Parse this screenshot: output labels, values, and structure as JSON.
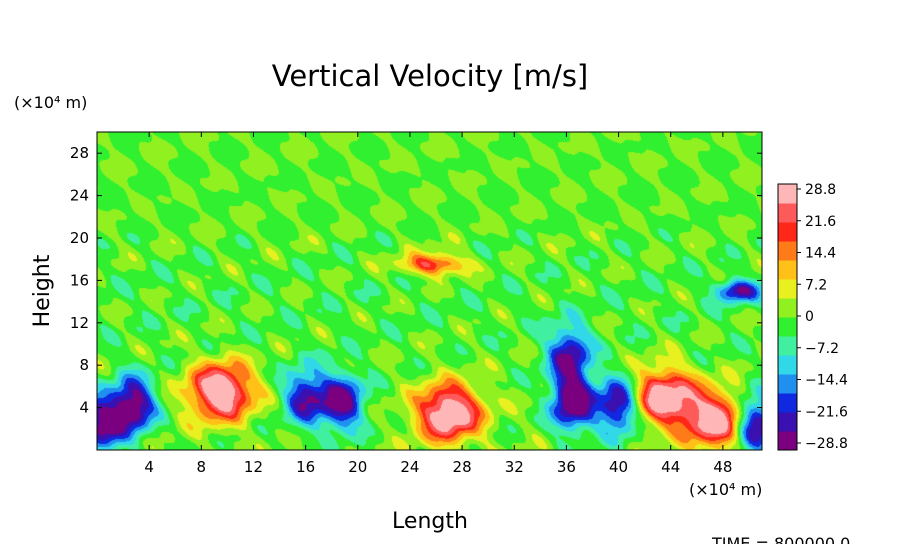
{
  "chart_data": {
    "type": "heatmap",
    "title": "Vertical Velocity [m/s]",
    "xlabel": "Length",
    "ylabel": "Height",
    "x_unit": "(×10⁴ m)",
    "y_unit": "(×10⁴ m)",
    "xlim": [
      0,
      51
    ],
    "ylim": [
      0,
      30
    ],
    "x_ticks": [
      "4",
      "8",
      "12",
      "16",
      "20",
      "24",
      "28",
      "32",
      "36",
      "40",
      "44",
      "48"
    ],
    "y_ticks": [
      "4",
      "8",
      "12",
      "16",
      "20",
      "24",
      "28"
    ],
    "colorbar": {
      "min": -28.8,
      "max": 28.8,
      "labels": [
        "28.8",
        "21.6",
        "14.4",
        "7.2",
        "0",
        "−7.2",
        "−14.4",
        "−21.6",
        "−28.8"
      ],
      "colors": [
        "#7a0080",
        "#3a10b0",
        "#1028e0",
        "#2090f0",
        "#30d8e8",
        "#40f0a0",
        "#30f030",
        "#90f020",
        "#e8f020",
        "#ffc018",
        "#ff7a18",
        "#ff2818",
        "#ff5a5a",
        "#ffb6b6"
      ]
    },
    "features": [
      {
        "label": "updraft",
        "x": 9.5,
        "y": 5.5,
        "peak": 34
      },
      {
        "label": "updraft",
        "x": 27.0,
        "y": 3.5,
        "peak": 34
      },
      {
        "label": "updraft",
        "x": 43.5,
        "y": 5.0,
        "peak": 32
      },
      {
        "label": "updraft",
        "x": 47.5,
        "y": 2.8,
        "peak": 31
      },
      {
        "label": "updraft",
        "x": 25.8,
        "y": 17.5,
        "peak": 22
      },
      {
        "label": "downdraft",
        "x": 2.8,
        "y": 4.2,
        "peak": -30
      },
      {
        "label": "downdraft",
        "x": 0.4,
        "y": 2.5,
        "peak": -28
      },
      {
        "label": "downdraft",
        "x": 16.0,
        "y": 5.0,
        "peak": -24
      },
      {
        "label": "downdraft",
        "x": 18.8,
        "y": 4.5,
        "peak": -28
      },
      {
        "label": "downdraft",
        "x": 36.5,
        "y": 4.5,
        "peak": -32
      },
      {
        "label": "downdraft",
        "x": 40.0,
        "y": 4.2,
        "peak": -28
      },
      {
        "label": "downdraft",
        "x": 50.5,
        "y": 2.5,
        "peak": -30
      },
      {
        "label": "downdraft",
        "x": 36.2,
        "y": 9.0,
        "peak": -24
      },
      {
        "label": "downdraft",
        "x": 49.2,
        "y": 15.0,
        "peak": -24
      }
    ]
  },
  "footer": {
    "time": "TIME = 800000.0"
  }
}
